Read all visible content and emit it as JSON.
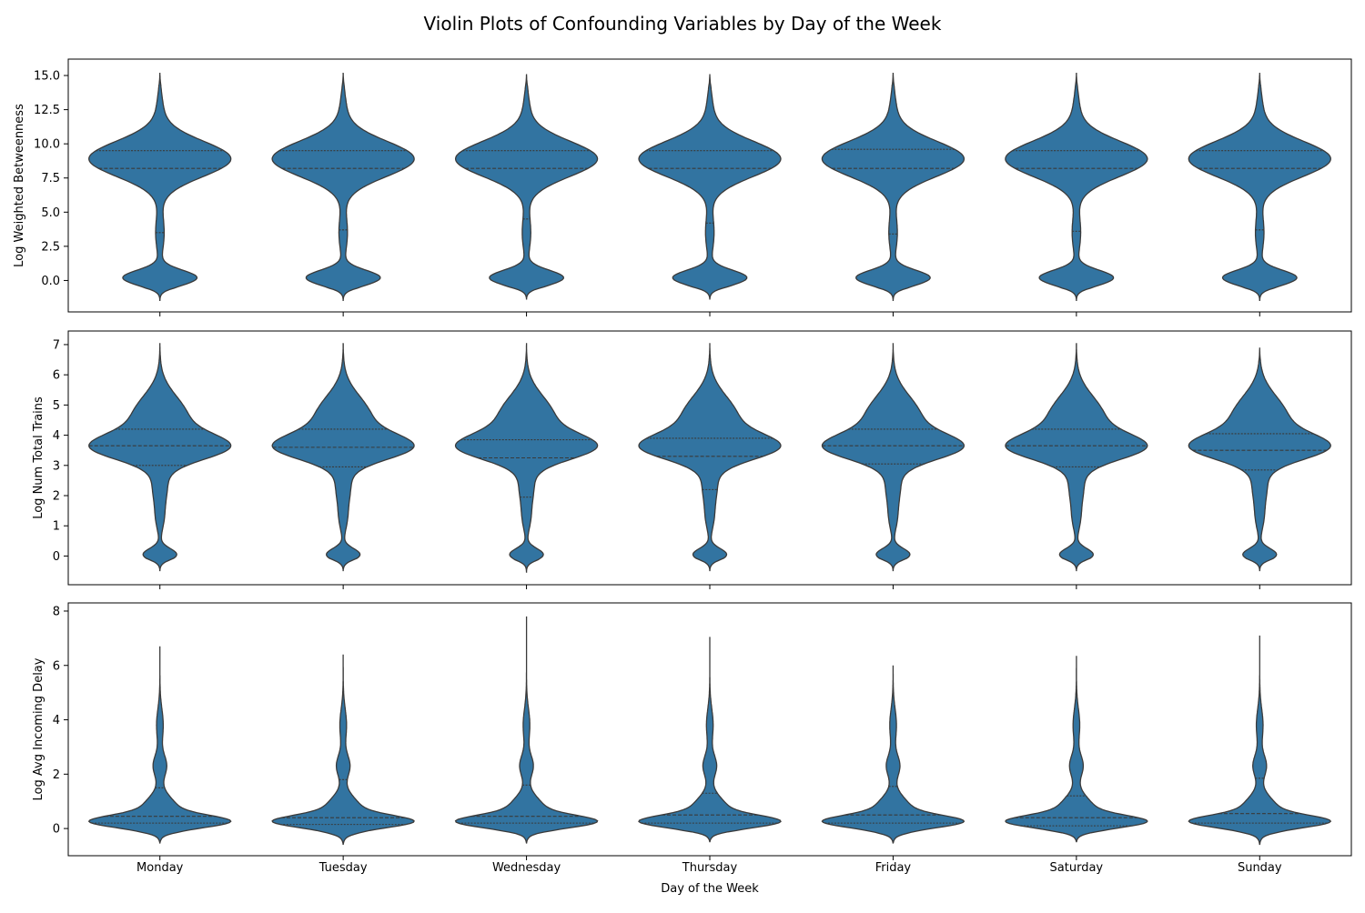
{
  "title": "Violin Plots of Confounding Variables by Day of the Week",
  "chart_data": {
    "type": "violin",
    "xlabel": "Day of the Week",
    "categories": [
      "Monday",
      "Tuesday",
      "Wednesday",
      "Thursday",
      "Friday",
      "Saturday",
      "Sunday"
    ],
    "fill_color": "#3274a1",
    "edge_color": "#3a3a3a",
    "inner": "quartile",
    "panels": [
      {
        "ylabel": "Log Weighted Betweenness",
        "ylim": [
          -2.3,
          16.2
        ],
        "yticks": [
          0.0,
          2.5,
          5.0,
          7.5,
          10.0,
          12.5,
          15.0
        ],
        "ytick_labels": [
          "0.0",
          "2.5",
          "5.0",
          "7.5",
          "10.0",
          "12.5",
          "15.0"
        ],
        "range": [
          [
            -1.5,
            15.2
          ],
          [
            -1.5,
            15.2
          ],
          [
            -1.4,
            15.1
          ],
          [
            -1.4,
            15.1
          ],
          [
            -1.5,
            15.2
          ],
          [
            -1.5,
            15.2
          ],
          [
            -1.5,
            15.2
          ]
        ],
        "quartiles": [
          [
            3.5,
            8.2,
            9.5
          ],
          [
            3.7,
            8.2,
            9.5
          ],
          [
            4.5,
            8.2,
            9.5
          ],
          [
            4.2,
            8.2,
            9.5
          ],
          [
            3.4,
            8.2,
            9.6
          ],
          [
            3.6,
            8.2,
            9.5
          ],
          [
            3.7,
            8.2,
            9.5
          ]
        ]
      },
      {
        "ylabel": "Log Num Total Trains",
        "ylim": [
          -0.95,
          7.45
        ],
        "yticks": [
          0,
          1,
          2,
          3,
          4,
          5,
          6,
          7
        ],
        "ytick_labels": [
          "0",
          "1",
          "2",
          "3",
          "4",
          "5",
          "6",
          "7"
        ],
        "range": [
          [
            -0.5,
            7.05
          ],
          [
            -0.5,
            7.05
          ],
          [
            -0.55,
            7.05
          ],
          [
            -0.5,
            7.05
          ],
          [
            -0.5,
            7.05
          ],
          [
            -0.5,
            7.05
          ],
          [
            -0.5,
            6.9
          ]
        ],
        "quartiles": [
          [
            3.0,
            3.65,
            4.2
          ],
          [
            2.95,
            3.6,
            4.2
          ],
          [
            1.95,
            3.25,
            3.85
          ],
          [
            2.2,
            3.3,
            3.9
          ],
          [
            3.05,
            3.65,
            4.2
          ],
          [
            2.95,
            3.65,
            4.2
          ],
          [
            2.85,
            3.5,
            4.05
          ]
        ]
      },
      {
        "ylabel": "Log Avg Incoming Delay",
        "ylim": [
          -1.0,
          8.3
        ],
        "yticks": [
          0,
          2,
          4,
          6,
          8
        ],
        "ytick_labels": [
          "0",
          "2",
          "4",
          "6",
          "8"
        ],
        "range": [
          [
            -0.55,
            6.7
          ],
          [
            -0.6,
            6.4
          ],
          [
            -0.55,
            7.8
          ],
          [
            -0.5,
            7.05
          ],
          [
            -0.55,
            6.0
          ],
          [
            -0.5,
            6.35
          ],
          [
            -0.6,
            7.1
          ]
        ],
        "quartiles": [
          [
            0.2,
            0.45,
            1.5
          ],
          [
            0.15,
            0.4,
            1.8
          ],
          [
            0.2,
            0.45,
            1.6
          ],
          [
            0.2,
            0.5,
            1.3
          ],
          [
            0.2,
            0.5,
            1.55
          ],
          [
            0.1,
            0.4,
            1.2
          ],
          [
            0.2,
            0.55,
            1.85
          ]
        ]
      }
    ]
  }
}
